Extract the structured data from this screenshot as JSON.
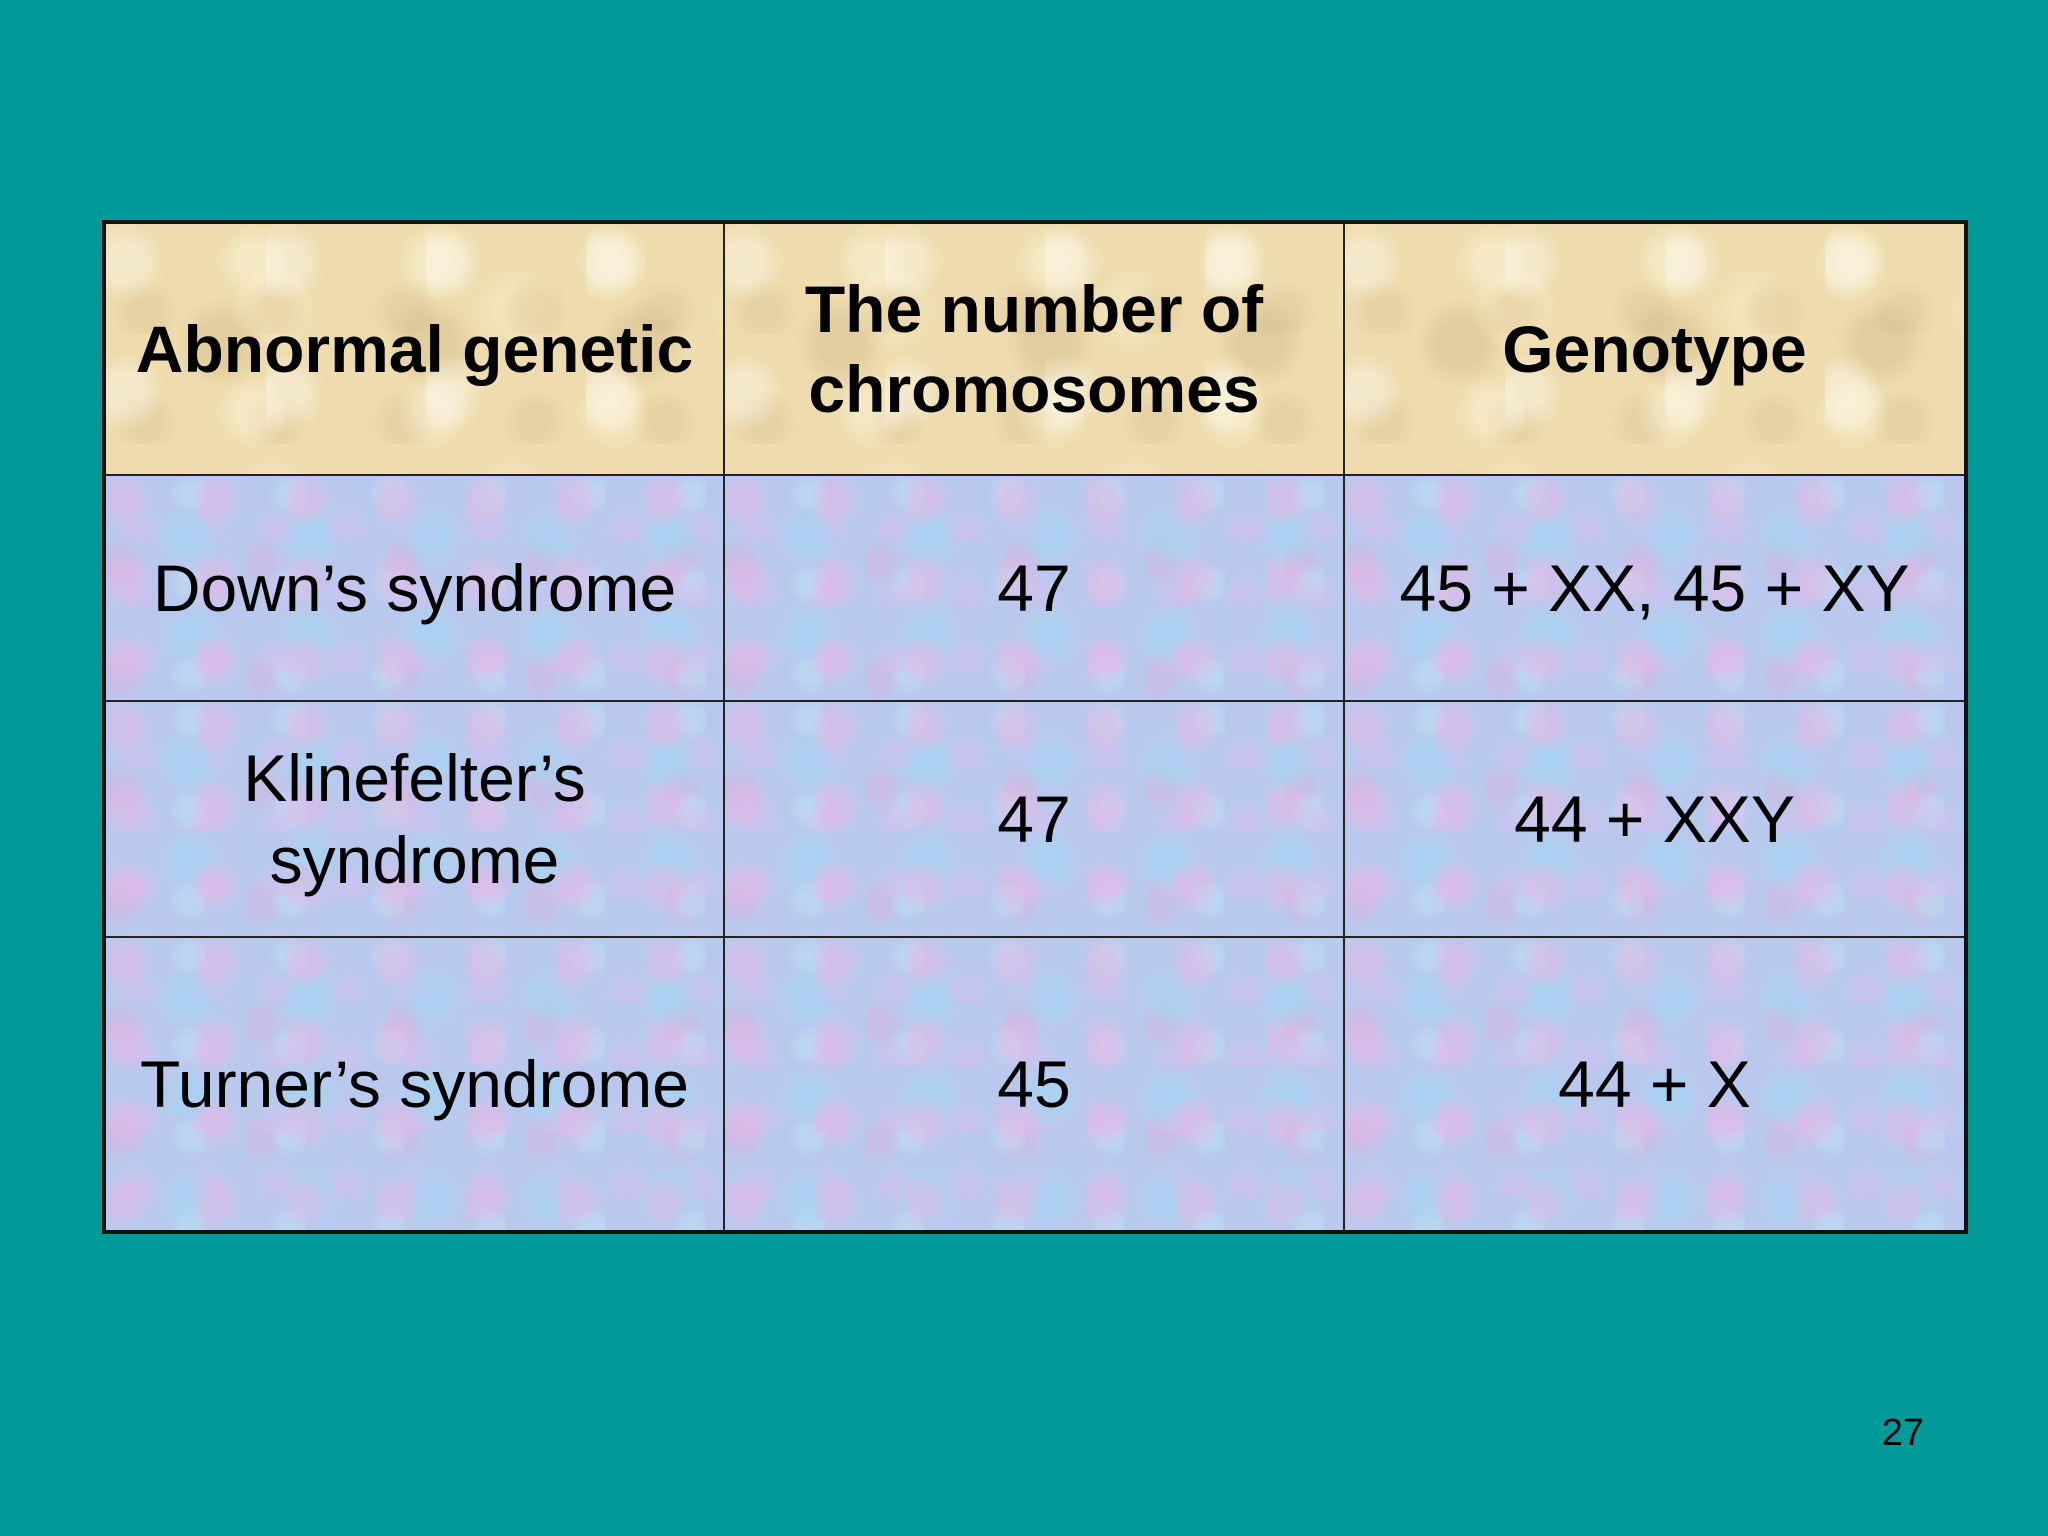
{
  "table": {
    "headers": [
      "Abnormal genetic",
      "The number of chromosomes",
      "Genotype"
    ],
    "rows": [
      {
        "condition": "Down’s syndrome",
        "chromosomes": "47",
        "genotype": "45 + XX, 45 + XY"
      },
      {
        "condition": "Klinefelter’s syndrome",
        "chromosomes": "47",
        "genotype": "44 + XXY"
      },
      {
        "condition": "Turner’s syndrome",
        "chromosomes": "45",
        "genotype": "44 + X"
      }
    ]
  },
  "page_number": "27",
  "colors": {
    "background": "#009999",
    "header_fill": "#eedcae",
    "body_fill": "#b9c9ee"
  }
}
